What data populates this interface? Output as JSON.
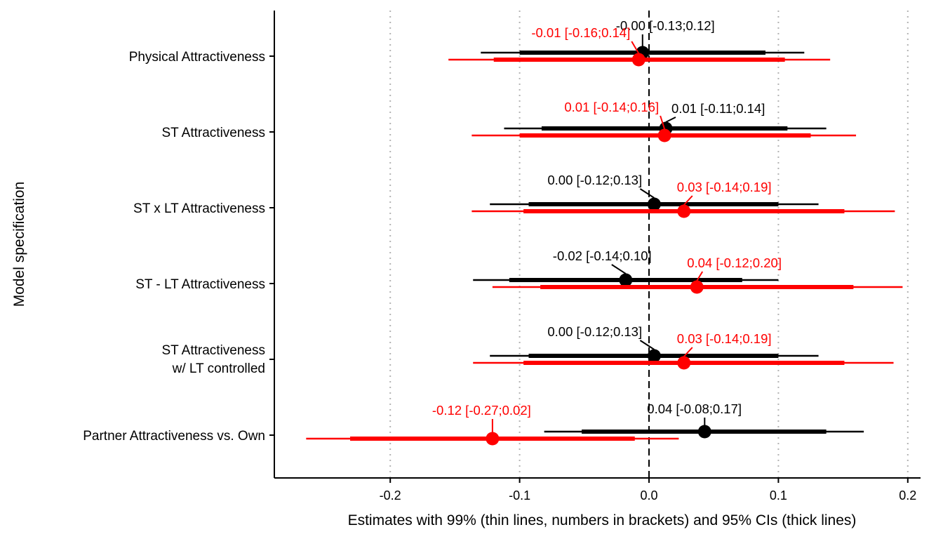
{
  "chart_data": {
    "type": "forest",
    "xlabel": "Estimates with 99% (thin lines, numbers in brackets) and 95% CIs (thick lines)",
    "ylabel": "Model specification",
    "xlim": [
      -0.29,
      0.22
    ],
    "xticks": [
      -0.2,
      -0.1,
      0.0,
      0.1,
      0.2
    ],
    "xtick_labels": [
      "-0.2",
      "-0.1",
      "0.0",
      "0.1",
      "0.2"
    ],
    "vertical_gridlines": "dotted",
    "reference_line": 0,
    "series_colors": {
      "black": "#000000",
      "red": "#ff0000"
    },
    "rows": [
      {
        "label": "Physical Attractiveness",
        "black": {
          "est": -0.005,
          "ci95": [
            -0.1,
            0.09
          ],
          "ci99": [
            -0.13,
            0.12
          ],
          "annotation": "-0.00 [-0.13;0.12]"
        },
        "red": {
          "est": -0.008,
          "ci95": [
            -0.12,
            0.105
          ],
          "ci99": [
            -0.155,
            0.14
          ],
          "annotation": "-0.01 [-0.16;0.14]"
        }
      },
      {
        "label": "ST Attractiveness",
        "black": {
          "est": 0.013,
          "ci95": [
            -0.083,
            0.107
          ],
          "ci99": [
            -0.112,
            0.137
          ],
          "annotation": "0.01 [-0.11;0.14]"
        },
        "red": {
          "est": 0.012,
          "ci95": [
            -0.1,
            0.125
          ],
          "ci99": [
            -0.137,
            0.16
          ],
          "annotation": "0.01 [-0.14;0.16]"
        }
      },
      {
        "label": "ST x LT Attractiveness",
        "black": {
          "est": 0.004,
          "ci95": [
            -0.093,
            0.1
          ],
          "ci99": [
            -0.123,
            0.131
          ],
          "annotation": "0.00 [-0.12;0.13]"
        },
        "red": {
          "est": 0.027,
          "ci95": [
            -0.097,
            0.151
          ],
          "ci99": [
            -0.137,
            0.19
          ],
          "annotation": "0.03 [-0.14;0.19]"
        }
      },
      {
        "label": "ST - LT Attractiveness",
        "black": {
          "est": -0.018,
          "ci95": [
            -0.108,
            0.072
          ],
          "ci99": [
            -0.136,
            0.1
          ],
          "annotation": "-0.02 [-0.14;0.10]"
        },
        "red": {
          "est": 0.037,
          "ci95": [
            -0.084,
            0.158
          ],
          "ci99": [
            -0.121,
            0.196
          ],
          "annotation": "0.04 [-0.12;0.20]"
        }
      },
      {
        "label_lines": [
          "ST Attractiveness",
          "w/ LT controlled"
        ],
        "black": {
          "est": 0.004,
          "ci95": [
            -0.093,
            0.1
          ],
          "ci99": [
            -0.123,
            0.131
          ],
          "annotation": "0.00 [-0.12;0.13]"
        },
        "red": {
          "est": 0.027,
          "ci95": [
            -0.097,
            0.151
          ],
          "ci99": [
            -0.136,
            0.189
          ],
          "annotation": "0.03 [-0.14;0.19]"
        }
      },
      {
        "label": "Partner Attractiveness vs. Own",
        "black": {
          "est": 0.043,
          "ci95": [
            -0.052,
            0.137
          ],
          "ci99": [
            -0.081,
            0.166
          ],
          "annotation": "0.04 [-0.08;0.17]"
        },
        "red": {
          "est": -0.121,
          "ci95": [
            -0.231,
            -0.011
          ],
          "ci99": [
            -0.265,
            0.023
          ],
          "annotation": "-0.12 [-0.27;0.02]"
        }
      }
    ]
  }
}
